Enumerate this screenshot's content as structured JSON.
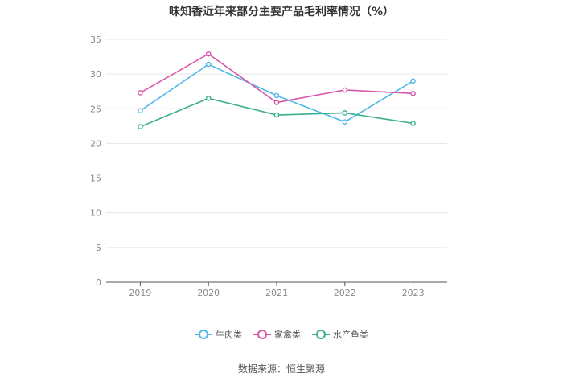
{
  "chart_data": {
    "type": "line",
    "title": "味知香近年来部分主要产品毛利率情况（%）",
    "categories": [
      "2019",
      "2020",
      "2021",
      "2022",
      "2023"
    ],
    "ylim": [
      0,
      35
    ],
    "yticks": [
      0,
      5,
      10,
      15,
      20,
      25,
      30,
      35
    ],
    "grid": true,
    "legend_position": "bottom",
    "series": [
      {
        "name": "牛肉类",
        "color": "#4fb7e8",
        "values": [
          24.7,
          31.4,
          26.9,
          23.1,
          29.0
        ]
      },
      {
        "name": "家禽类",
        "color": "#d857a8",
        "values": [
          27.3,
          32.9,
          25.9,
          27.7,
          27.2
        ]
      },
      {
        "name": "水产鱼类",
        "color": "#3aae8e",
        "values": [
          22.4,
          26.5,
          24.1,
          24.4,
          22.9
        ]
      }
    ],
    "source": "数据来源：恒生聚源"
  }
}
